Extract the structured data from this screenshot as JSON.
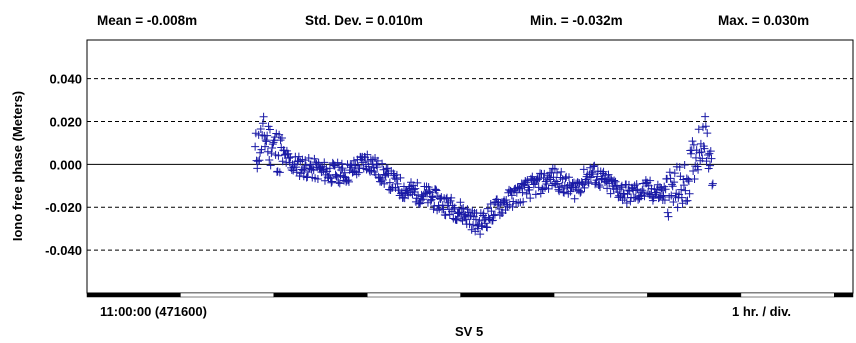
{
  "header": {
    "mean": "Mean = -0.008m",
    "std": "Std. Dev. = 0.010m",
    "min": "Min. = -0.032m",
    "max": "Max. = 0.030m"
  },
  "footer": {
    "start": "11:00:00 (471600)",
    "scale": "1 hr. / div.",
    "sv": "SV 5"
  },
  "chart_data": {
    "type": "scatter",
    "title": "",
    "xlabel": "",
    "ylabel": "Iono free phase (Meters)",
    "yticks": [
      "0.040",
      "0.020",
      "0.000",
      "-0.020",
      "-0.040"
    ],
    "ylim": [
      -0.06,
      0.058
    ],
    "xlim": [
      0,
      8.2
    ],
    "grid": "dashed horizontal",
    "marker": "+",
    "color": "#1a1aa6",
    "time_bar": [
      {
        "color": "#000000",
        "value": 0
      },
      {
        "color": "#ffffff",
        "value": 1
      },
      {
        "color": "#000000",
        "value": 2
      },
      {
        "color": "#ffffff",
        "value": 3
      },
      {
        "color": "#000000",
        "value": 4
      },
      {
        "color": "#ffffff",
        "value": 5
      },
      {
        "color": "#000000",
        "value": 6
      },
      {
        "color": "#ffffff",
        "value": 7
      },
      {
        "color": "#000000",
        "value": 8
      }
    ],
    "series": [
      {
        "x": [
          1.8,
          1.9,
          2.0,
          2.2,
          2.4,
          2.6,
          2.8,
          3.0,
          3.2,
          3.4,
          3.6,
          3.8,
          4.0,
          4.2,
          4.4,
          4.6,
          4.8,
          5.0,
          5.2,
          5.4,
          5.6,
          5.8,
          6.0,
          6.2,
          6.4,
          6.6,
          6.7
        ],
        "y": [
          0.005,
          0.013,
          0.008,
          0.0,
          -0.002,
          -0.004,
          -0.004,
          0.002,
          -0.006,
          -0.012,
          -0.014,
          -0.018,
          -0.022,
          -0.028,
          -0.02,
          -0.014,
          -0.01,
          -0.006,
          -0.012,
          -0.004,
          -0.01,
          -0.014,
          -0.012,
          -0.014,
          -0.01,
          0.015,
          0.0
        ]
      }
    ]
  }
}
